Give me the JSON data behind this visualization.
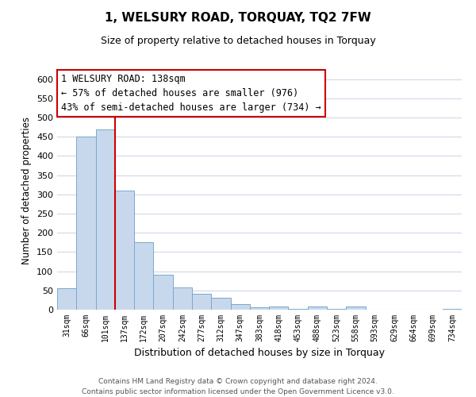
{
  "title": "1, WELSURY ROAD, TORQUAY, TQ2 7FW",
  "subtitle": "Size of property relative to detached houses in Torquay",
  "xlabel": "Distribution of detached houses by size in Torquay",
  "ylabel": "Number of detached properties",
  "bar_color": "#c8d8ec",
  "bar_edge_color": "#7aa8cc",
  "bin_labels": [
    "31sqm",
    "66sqm",
    "101sqm",
    "137sqm",
    "172sqm",
    "207sqm",
    "242sqm",
    "277sqm",
    "312sqm",
    "347sqm",
    "383sqm",
    "418sqm",
    "453sqm",
    "488sqm",
    "523sqm",
    "558sqm",
    "593sqm",
    "629sqm",
    "664sqm",
    "699sqm",
    "734sqm"
  ],
  "bar_heights": [
    55,
    450,
    470,
    310,
    175,
    90,
    58,
    42,
    30,
    15,
    7,
    8,
    2,
    8,
    2,
    8,
    1,
    0,
    1,
    0,
    2
  ],
  "ylim": [
    0,
    620
  ],
  "yticks": [
    0,
    50,
    100,
    150,
    200,
    250,
    300,
    350,
    400,
    450,
    500,
    550,
    600
  ],
  "vline_x": 3,
  "vline_color": "#cc0000",
  "annotation_text": "1 WELSURY ROAD: 138sqm\n← 57% of detached houses are smaller (976)\n43% of semi-detached houses are larger (734) →",
  "annotation_box_color": "#ffffff",
  "annotation_box_edge": "#cc0000",
  "footer_line1": "Contains HM Land Registry data © Crown copyright and database right 2024.",
  "footer_line2": "Contains public sector information licensed under the Open Government Licence v3.0.",
  "background_color": "#ffffff",
  "grid_color": "#d0d8e8"
}
